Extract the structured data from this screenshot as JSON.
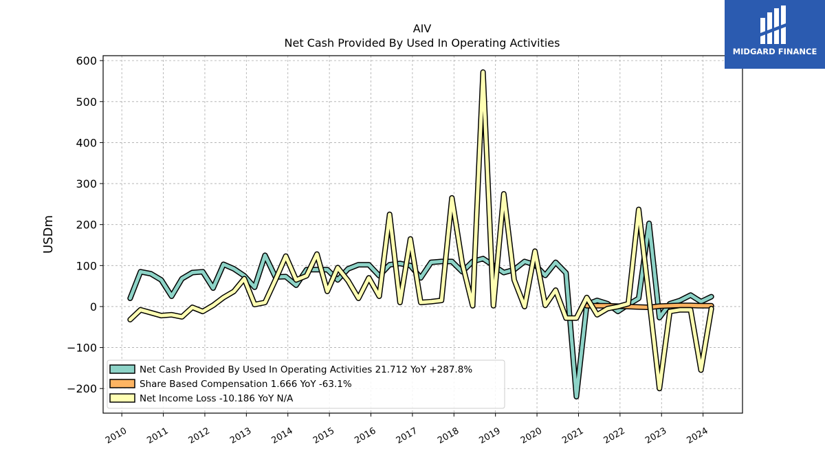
{
  "brand": {
    "name": "MIDGARD FINANCE",
    "color": "#2b5bb0"
  },
  "chart_data": {
    "type": "line",
    "title": "AIV",
    "subtitle": "Net Cash Provided By Used In Operating Activities",
    "ylabel": "USDm",
    "xlabel": "",
    "ylim": [
      -260,
      612
    ],
    "xlim": [
      2009.55,
      2024.95
    ],
    "yticks": [
      -200,
      -100,
      0,
      100,
      200,
      300,
      400,
      500,
      600
    ],
    "ytick_labels": [
      "−200",
      "−100",
      "0",
      "100",
      "200",
      "300",
      "400",
      "500",
      "600"
    ],
    "xticks": [
      2010,
      2011,
      2012,
      2013,
      2014,
      2015,
      2016,
      2017,
      2018,
      2019,
      2020,
      2021,
      2022,
      2023,
      2024
    ],
    "xtick_labels": [
      "2010",
      "2011",
      "2012",
      "2013",
      "2014",
      "2015",
      "2016",
      "2017",
      "2018",
      "2019",
      "2020",
      "2021",
      "2022",
      "2023",
      "2024"
    ],
    "grid": true,
    "legend_position": "lower-left",
    "series": [
      {
        "name": "Net Cash Provided By Used In Operating Activities",
        "legend_label": "Net Cash Provided By Used In Operating Activities  21.712 YoY +287.8%",
        "color": "#8dd3c7",
        "points": [
          [
            2010.2,
            20
          ],
          [
            2010.45,
            85
          ],
          [
            2010.7,
            80
          ],
          [
            2010.95,
            65
          ],
          [
            2011.2,
            25
          ],
          [
            2011.45,
            68
          ],
          [
            2011.7,
            83
          ],
          [
            2011.95,
            85
          ],
          [
            2012.2,
            45
          ],
          [
            2012.45,
            103
          ],
          [
            2012.7,
            92
          ],
          [
            2012.95,
            75
          ],
          [
            2013.2,
            47
          ],
          [
            2013.45,
            125
          ],
          [
            2013.7,
            72
          ],
          [
            2013.95,
            73
          ],
          [
            2014.2,
            52
          ],
          [
            2014.45,
            90
          ],
          [
            2014.7,
            90
          ],
          [
            2014.95,
            90
          ],
          [
            2015.2,
            65
          ],
          [
            2015.45,
            92
          ],
          [
            2015.7,
            102
          ],
          [
            2015.95,
            102
          ],
          [
            2016.2,
            75
          ],
          [
            2016.45,
            102
          ],
          [
            2016.7,
            105
          ],
          [
            2016.95,
            100
          ],
          [
            2017.2,
            70
          ],
          [
            2017.45,
            108
          ],
          [
            2017.7,
            110
          ],
          [
            2017.95,
            110
          ],
          [
            2018.2,
            85
          ],
          [
            2018.45,
            110
          ],
          [
            2018.7,
            117
          ],
          [
            2018.95,
            100
          ],
          [
            2019.2,
            83
          ],
          [
            2019.45,
            90
          ],
          [
            2019.7,
            110
          ],
          [
            2019.95,
            102
          ],
          [
            2020.2,
            76
          ],
          [
            2020.45,
            108
          ],
          [
            2020.7,
            82
          ],
          [
            2020.95,
            -220
          ],
          [
            2021.2,
            5
          ],
          [
            2021.45,
            15
          ],
          [
            2021.7,
            7
          ],
          [
            2021.95,
            -12
          ],
          [
            2022.2,
            5
          ],
          [
            2022.45,
            20
          ],
          [
            2022.7,
            203
          ],
          [
            2022.95,
            -27
          ],
          [
            2023.2,
            7
          ],
          [
            2023.45,
            15
          ],
          [
            2023.7,
            28
          ],
          [
            2023.95,
            12
          ],
          [
            2024.2,
            24
          ]
        ]
      },
      {
        "name": "Share Based Compensation",
        "legend_label": "Share Based Compensation  1.666 YoY -63.1%",
        "color": "#fdb462",
        "points": [
          [
            2021.2,
            2
          ],
          [
            2021.45,
            2
          ],
          [
            2021.7,
            2
          ],
          [
            2021.95,
            1
          ],
          [
            2022.2,
            0
          ],
          [
            2022.45,
            -1
          ],
          [
            2022.7,
            -2
          ],
          [
            2022.95,
            1
          ],
          [
            2023.2,
            2
          ],
          [
            2023.45,
            3
          ],
          [
            2023.7,
            3
          ],
          [
            2023.95,
            2
          ],
          [
            2024.2,
            2
          ]
        ]
      },
      {
        "name": "Net Income Loss",
        "legend_label": "Net Income Loss  -10.186 YoY N/A",
        "color": "#ffffb3",
        "points": [
          [
            2010.2,
            -32
          ],
          [
            2010.45,
            -8
          ],
          [
            2010.7,
            -15
          ],
          [
            2010.95,
            -22
          ],
          [
            2011.2,
            -20
          ],
          [
            2011.45,
            -25
          ],
          [
            2011.7,
            -2
          ],
          [
            2011.95,
            -12
          ],
          [
            2012.2,
            3
          ],
          [
            2012.45,
            22
          ],
          [
            2012.7,
            37
          ],
          [
            2012.95,
            68
          ],
          [
            2013.2,
            5
          ],
          [
            2013.45,
            10
          ],
          [
            2013.7,
            65
          ],
          [
            2013.95,
            123
          ],
          [
            2014.2,
            65
          ],
          [
            2014.45,
            75
          ],
          [
            2014.7,
            128
          ],
          [
            2014.95,
            37
          ],
          [
            2015.2,
            95
          ],
          [
            2015.45,
            63
          ],
          [
            2015.7,
            20
          ],
          [
            2015.95,
            70
          ],
          [
            2016.2,
            25
          ],
          [
            2016.45,
            225
          ],
          [
            2016.7,
            10
          ],
          [
            2016.95,
            165
          ],
          [
            2017.2,
            10
          ],
          [
            2017.45,
            12
          ],
          [
            2017.7,
            15
          ],
          [
            2017.95,
            265
          ],
          [
            2018.2,
            105
          ],
          [
            2018.45,
            2
          ],
          [
            2018.7,
            572
          ],
          [
            2018.95,
            2
          ],
          [
            2019.2,
            275
          ],
          [
            2019.45,
            65
          ],
          [
            2019.7,
            0
          ],
          [
            2019.95,
            135
          ],
          [
            2020.2,
            3
          ],
          [
            2020.45,
            40
          ],
          [
            2020.7,
            -28
          ],
          [
            2020.95,
            -28
          ],
          [
            2021.2,
            22
          ],
          [
            2021.45,
            -20
          ],
          [
            2021.7,
            -5
          ],
          [
            2021.95,
            0
          ],
          [
            2022.2,
            7
          ],
          [
            2022.45,
            237
          ],
          [
            2022.7,
            20
          ],
          [
            2022.95,
            -200
          ],
          [
            2023.2,
            -12
          ],
          [
            2023.45,
            -8
          ],
          [
            2023.7,
            -8
          ],
          [
            2023.95,
            -155
          ],
          [
            2024.2,
            -5
          ]
        ]
      }
    ]
  }
}
